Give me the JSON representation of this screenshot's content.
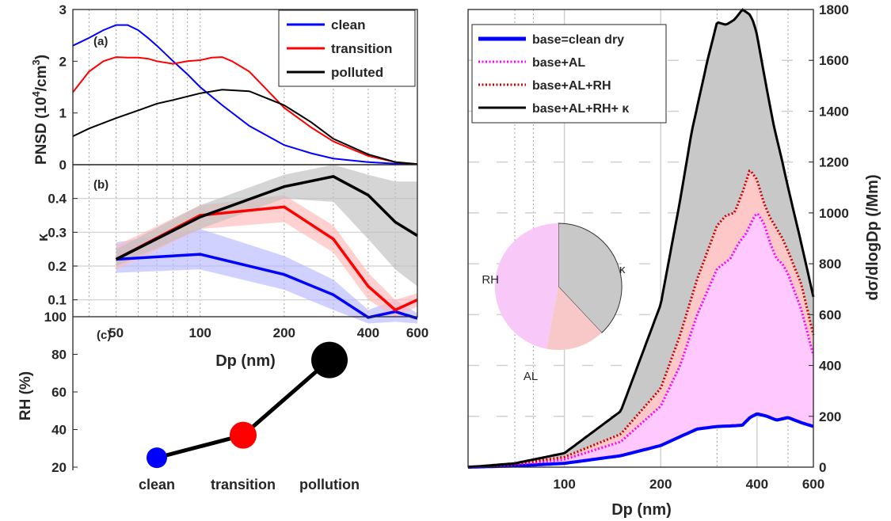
{
  "chart_data": [
    {
      "panel": "(a)",
      "type": "line",
      "ylabel": "PNSD (10",
      "ylabel_sup": "4",
      "ylabel_unit": "/cm",
      "ylabel_sup2": "3",
      "ylabel_close": ")",
      "xscale": "log",
      "xlim": [
        35,
        600
      ],
      "ylim": [
        0,
        3
      ],
      "yticks": [
        "0",
        "1",
        "2",
        "3"
      ],
      "grid": false,
      "legend_position": "top-right",
      "series": [
        {
          "name": "clean",
          "color": "#0000ff",
          "x": [
            35,
            40,
            45,
            50,
            55,
            60,
            65,
            70,
            80,
            90,
            100,
            120,
            150,
            200,
            250,
            300,
            400,
            500,
            600
          ],
          "y": [
            2.3,
            2.45,
            2.6,
            2.7,
            2.7,
            2.6,
            2.45,
            2.3,
            2.0,
            1.75,
            1.5,
            1.15,
            0.75,
            0.38,
            0.22,
            0.12,
            0.05,
            0.02,
            0.01
          ]
        },
        {
          "name": "transition",
          "color": "#ff0000",
          "x": [
            35,
            40,
            45,
            50,
            55,
            60,
            65,
            70,
            80,
            90,
            100,
            110,
            120,
            130,
            150,
            200,
            250,
            300,
            400,
            500,
            600
          ],
          "y": [
            1.4,
            1.8,
            2.0,
            2.08,
            2.07,
            2.07,
            2.05,
            2.0,
            1.95,
            2.0,
            2.02,
            2.07,
            2.08,
            2.0,
            1.8,
            1.1,
            0.72,
            0.45,
            0.17,
            0.05,
            0.01
          ]
        },
        {
          "name": "polluted",
          "color": "#000000",
          "x": [
            35,
            40,
            50,
            60,
            70,
            80,
            90,
            100,
            120,
            150,
            200,
            250,
            300,
            400,
            500,
            600
          ],
          "y": [
            0.55,
            0.7,
            0.9,
            1.05,
            1.18,
            1.25,
            1.32,
            1.38,
            1.45,
            1.42,
            1.15,
            0.82,
            0.5,
            0.2,
            0.05,
            0.01
          ]
        }
      ]
    },
    {
      "panel": "(b)",
      "type": "line",
      "ylabel": "κ",
      "xscale": "log",
      "xlim": [
        35,
        600
      ],
      "ylim": [
        0.05,
        0.5
      ],
      "yticks": [
        "0.1",
        "0.2",
        "0.3",
        "0.4"
      ],
      "xticks": [
        "50",
        "100",
        "200",
        "400",
        "600"
      ],
      "xlabel": "Dp (nm)",
      "series": [
        {
          "name": "clean",
          "color": "#0000ff",
          "x": [
            50,
            100,
            200,
            300,
            400,
            500,
            600
          ],
          "y": [
            0.22,
            0.235,
            0.175,
            0.115,
            0.048,
            0.065,
            0.045
          ],
          "lo": [
            0.18,
            0.19,
            0.13,
            0.07,
            0.03,
            0.035,
            0.03
          ],
          "hi": [
            0.27,
            0.31,
            0.23,
            0.16,
            0.07,
            0.1,
            0.06
          ]
        },
        {
          "name": "transition",
          "color": "#ff0000",
          "x": [
            50,
            100,
            200,
            300,
            400,
            500,
            600
          ],
          "y": [
            0.22,
            0.35,
            0.375,
            0.28,
            0.14,
            0.07,
            0.1
          ],
          "lo": [
            0.19,
            0.31,
            0.33,
            0.24,
            0.1,
            0.05,
            0.08
          ],
          "hi": [
            0.26,
            0.38,
            0.41,
            0.32,
            0.18,
            0.1,
            0.12
          ]
        },
        {
          "name": "polluted",
          "color": "#000000",
          "x": [
            50,
            100,
            200,
            300,
            400,
            500,
            600
          ],
          "y": [
            0.22,
            0.345,
            0.435,
            0.465,
            0.41,
            0.33,
            0.29
          ],
          "lo": [
            0.2,
            0.31,
            0.4,
            0.39,
            0.28,
            0.19,
            0.14
          ],
          "hi": [
            0.25,
            0.38,
            0.47,
            0.5,
            0.47,
            0.45,
            0.45
          ]
        }
      ]
    },
    {
      "panel": "(c)",
      "type": "scatter",
      "ylabel": "RH (%)",
      "ylim": [
        20,
        100
      ],
      "yticks": [
        "20",
        "40",
        "60",
        "80",
        "100"
      ],
      "categories": [
        "clean",
        "transition",
        "pollution"
      ],
      "values": [
        25,
        37,
        77
      ],
      "colors": [
        "#0000ff",
        "#ff0000",
        "#000000"
      ]
    },
    {
      "panel": "right",
      "type": "area",
      "xlabel": "Dp (nm)",
      "ylabel": "dσ/dlogDp (/Mm)",
      "xscale": "log",
      "xlim": [
        50,
        600
      ],
      "ylim": [
        0,
        1800
      ],
      "xticks": [
        "100",
        "200",
        "400",
        "600"
      ],
      "yticks": [
        "0",
        "200",
        "400",
        "600",
        "800",
        "1000",
        "1200",
        "1400",
        "1600",
        "1800"
      ],
      "legend_position": "top-left",
      "series": [
        {
          "name": "base=clean dry",
          "color": "#0000ff",
          "style": "solid",
          "x": [
            50,
            70,
            100,
            150,
            200,
            230,
            260,
            300,
            330,
            360,
            380,
            400,
            430,
            460,
            480,
            500,
            550,
            600
          ],
          "y": [
            0,
            5,
            15,
            45,
            85,
            120,
            150,
            160,
            162,
            165,
            195,
            210,
            200,
            185,
            190,
            195,
            175,
            160
          ]
        },
        {
          "name": "base+AL",
          "color": "#ff00ff",
          "style": "dotted",
          "x": [
            50,
            70,
            100,
            150,
            200,
            230,
            260,
            300,
            330,
            350,
            370,
            390,
            400,
            420,
            440,
            460,
            480,
            500,
            550,
            600
          ],
          "y": [
            0,
            10,
            30,
            100,
            240,
            400,
            600,
            780,
            820,
            880,
            920,
            980,
            1000,
            960,
            880,
            820,
            800,
            760,
            620,
            440
          ]
        },
        {
          "name": "base+AL+RH",
          "color": "#cc0000",
          "style": "dotted",
          "x": [
            50,
            70,
            100,
            150,
            200,
            230,
            260,
            300,
            320,
            340,
            360,
            380,
            400,
            420,
            440,
            460,
            480,
            500,
            550,
            600
          ],
          "y": [
            0,
            12,
            40,
            130,
            310,
            520,
            740,
            950,
            990,
            1000,
            1080,
            1170,
            1130,
            1040,
            980,
            940,
            900,
            850,
            720,
            520
          ]
        },
        {
          "name": "base+AL+RH+ κ",
          "color": "#000000",
          "style": "solid",
          "x": [
            50,
            70,
            100,
            150,
            200,
            230,
            250,
            280,
            300,
            320,
            340,
            360,
            380,
            390,
            400,
            420,
            450,
            480,
            500,
            550,
            600
          ],
          "y": [
            0,
            15,
            55,
            220,
            640,
            1050,
            1320,
            1600,
            1750,
            1740,
            1760,
            1800,
            1780,
            1750,
            1700,
            1550,
            1350,
            1200,
            1100,
            880,
            670
          ]
        }
      ],
      "pie": {
        "labels": [
          "κ",
          "AL",
          "RH"
        ],
        "fractions": [
          0.38,
          0.47,
          0.15
        ],
        "colors": [
          "#c8c8c8",
          "#f8c8f8",
          "#f8c8c8"
        ]
      }
    }
  ]
}
